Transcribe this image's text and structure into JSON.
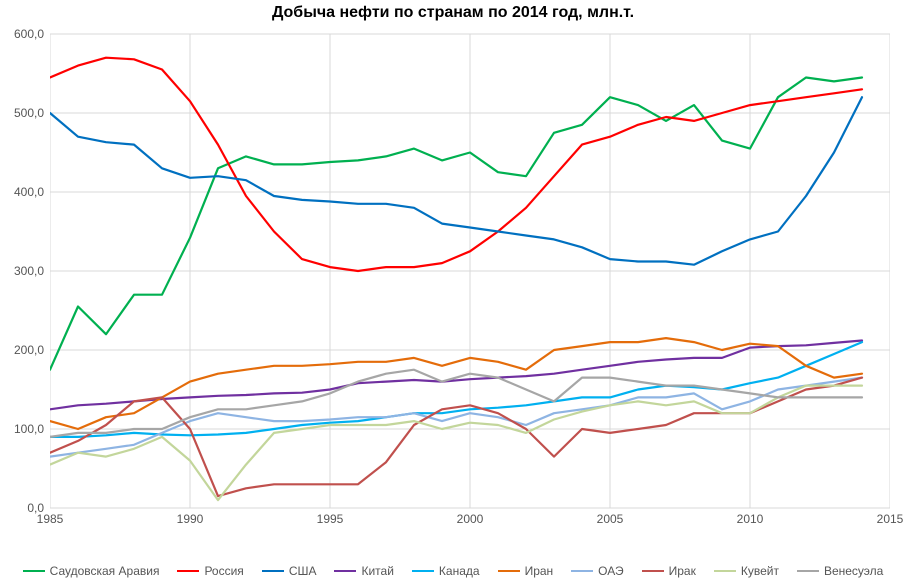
{
  "chart": {
    "type": "line",
    "title": "Добыча нефти по странам по 2014 год, млн.т.",
    "title_fontsize": 16,
    "title_fontweight": "bold",
    "background_color": "#ffffff",
    "grid_color": "#d9d9d9",
    "axis_color": "#bfbfbf",
    "tick_label_color": "#555555",
    "tick_fontsize": 12,
    "legend_fontsize": 12,
    "line_width": 2.2,
    "xlim": [
      1985,
      2015
    ],
    "ylim": [
      0,
      600
    ],
    "xticks": [
      1985,
      1990,
      1995,
      2000,
      2005,
      2010,
      2015
    ],
    "yticks": [
      0,
      100,
      200,
      300,
      400,
      500,
      600
    ],
    "ytick_labels": [
      "0,0",
      "100,0",
      "200,0",
      "300,0",
      "400,0",
      "500,0",
      "600,0"
    ],
    "xtick_labels": [
      "1985",
      "1990",
      "1995",
      "2000",
      "2005",
      "2010",
      "2015"
    ],
    "x_values": [
      1985,
      1986,
      1987,
      1988,
      1989,
      1990,
      1991,
      1992,
      1993,
      1994,
      1995,
      1996,
      1997,
      1998,
      1999,
      2000,
      2001,
      2002,
      2003,
      2004,
      2005,
      2006,
      2007,
      2008,
      2009,
      2010,
      2011,
      2012,
      2013,
      2014
    ],
    "series": [
      {
        "name": "Саудовская Аравия",
        "color": "#00B050",
        "values": [
          175,
          255,
          220,
          270,
          270,
          342,
          430,
          445,
          435,
          435,
          438,
          440,
          445,
          455,
          440,
          450,
          425,
          420,
          475,
          485,
          520,
          510,
          490,
          510,
          465,
          455,
          520,
          545,
          540,
          545
        ]
      },
      {
        "name": "Россия",
        "color": "#FF0000",
        "values": [
          545,
          560,
          570,
          568,
          555,
          515,
          460,
          395,
          350,
          315,
          305,
          300,
          305,
          305,
          310,
          325,
          350,
          380,
          420,
          460,
          470,
          485,
          495,
          490,
          500,
          510,
          515,
          520,
          525,
          530
        ]
      },
      {
        "name": "США",
        "color": "#0070C0",
        "values": [
          500,
          470,
          463,
          460,
          430,
          418,
          420,
          415,
          395,
          390,
          388,
          385,
          385,
          380,
          360,
          355,
          350,
          345,
          340,
          330,
          315,
          312,
          312,
          308,
          325,
          340,
          350,
          395,
          450,
          520
        ]
      },
      {
        "name": "Китай",
        "color": "#7030A0",
        "values": [
          125,
          130,
          132,
          135,
          138,
          140,
          142,
          143,
          145,
          146,
          150,
          158,
          160,
          162,
          160,
          163,
          165,
          167,
          170,
          175,
          180,
          185,
          188,
          190,
          190,
          203,
          205,
          206,
          209,
          212
        ]
      },
      {
        "name": "Канада",
        "color": "#00B0F0",
        "values": [
          90,
          90,
          92,
          95,
          93,
          92,
          93,
          95,
          100,
          105,
          108,
          110,
          115,
          120,
          120,
          125,
          127,
          130,
          135,
          140,
          140,
          150,
          155,
          153,
          150,
          158,
          165,
          180,
          195,
          210
        ]
      },
      {
        "name": "Иран",
        "color": "#E46C0A",
        "values": [
          110,
          100,
          115,
          120,
          140,
          160,
          170,
          175,
          180,
          180,
          182,
          185,
          185,
          190,
          180,
          190,
          185,
          175,
          200,
          205,
          210,
          210,
          215,
          210,
          200,
          208,
          205,
          180,
          165,
          170
        ]
      },
      {
        "name": "ОАЭ",
        "color": "#8EB4E3",
        "values": [
          65,
          70,
          75,
          80,
          95,
          110,
          120,
          115,
          110,
          110,
          112,
          115,
          115,
          120,
          110,
          120,
          115,
          105,
          120,
          125,
          130,
          140,
          140,
          145,
          125,
          135,
          150,
          155,
          160,
          165
        ]
      },
      {
        "name": "Ирак",
        "color": "#C0504D",
        "values": [
          70,
          85,
          105,
          135,
          140,
          100,
          15,
          25,
          30,
          30,
          30,
          30,
          58,
          105,
          125,
          130,
          120,
          100,
          65,
          100,
          95,
          100,
          105,
          120,
          120,
          120,
          135,
          150,
          155,
          165
        ]
      },
      {
        "name": "Кувейт",
        "color": "#C3D69B",
        "values": [
          55,
          70,
          65,
          75,
          90,
          60,
          10,
          55,
          95,
          100,
          105,
          105,
          105,
          110,
          100,
          108,
          105,
          95,
          112,
          122,
          130,
          135,
          130,
          135,
          120,
          120,
          140,
          155,
          155,
          155
        ]
      },
      {
        "name": "Венесуэла",
        "color": "#A6A6A6",
        "values": [
          90,
          95,
          95,
          100,
          100,
          115,
          125,
          125,
          130,
          135,
          145,
          160,
          170,
          175,
          160,
          170,
          165,
          150,
          135,
          165,
          165,
          160,
          155,
          155,
          150,
          145,
          140,
          140,
          140,
          140
        ]
      }
    ]
  }
}
